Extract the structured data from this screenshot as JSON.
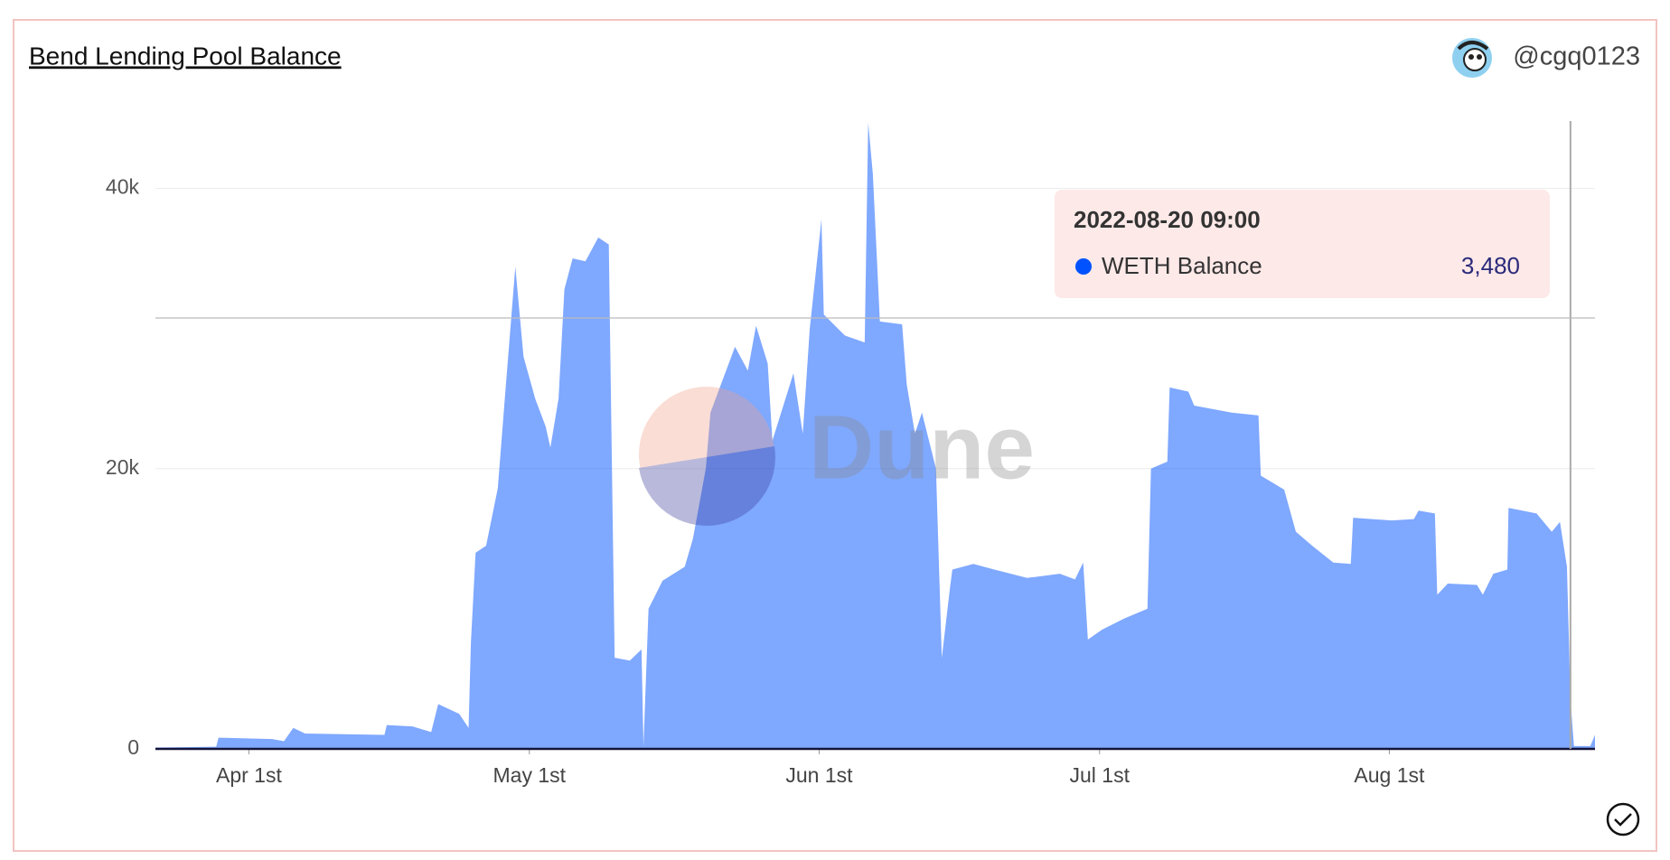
{
  "chart_data": {
    "type": "area",
    "title": "Bend Lending Pool Balance",
    "author": "@cgq0123",
    "watermark": "Dune",
    "xlim": [
      "2022-03-22 00:00",
      "2022-08-23 00:00"
    ],
    "xticks": [
      {
        "value": "2022-04-01 00:00",
        "label": "Apr 1st"
      },
      {
        "value": "2022-05-01 00:00",
        "label": "May 1st"
      },
      {
        "value": "2022-06-01 00:00",
        "label": "Jun 1st"
      },
      {
        "value": "2022-07-01 00:00",
        "label": "Jul 1st"
      },
      {
        "value": "2022-08-01 00:00",
        "label": "Aug 1st"
      }
    ],
    "ylim": [
      0,
      45000
    ],
    "yticks": [
      0,
      {
        "value": 20000,
        "label": "20k"
      },
      {
        "value": 40000,
        "label": "40k"
      }
    ],
    "grid": true,
    "x": [
      "2022-03-22 00:00",
      "2022-03-28 12:00",
      "2022-03-28 18:00",
      "2022-04-03 12:00",
      "2022-04-04 18:00",
      "2022-04-05 18:00",
      "2022-04-07 00:00",
      "2022-04-15 12:00",
      "2022-04-15 18:00",
      "2022-04-18 12:00",
      "2022-04-20 12:00",
      "2022-04-21 06:00",
      "2022-04-23 12:00",
      "2022-04-24 12:00",
      "2022-04-24 18:00",
      "2022-04-25 06:00",
      "2022-04-26 09:00",
      "2022-04-27 15:00",
      "2022-04-28 09:00",
      "2022-04-29 12:00",
      "2022-04-30 09:00",
      "2022-05-01 15:00",
      "2022-05-02 18:00",
      "2022-05-03 06:00",
      "2022-05-04 03:00",
      "2022-05-04 18:00",
      "2022-05-05 15:00",
      "2022-05-07 00:00",
      "2022-05-08 09:00",
      "2022-05-09 12:00",
      "2022-05-10 03:00",
      "2022-05-11 18:00",
      "2022-05-13 00:00",
      "2022-05-13 05:00",
      "2022-05-13 18:00",
      "2022-05-15 06:00",
      "2022-05-17 15:00",
      "2022-05-18 12:00",
      "2022-05-19 21:00",
      "2022-05-20 09:00",
      "2022-05-23 00:00",
      "2022-05-24 09:00",
      "2022-05-25 06:00",
      "2022-05-26 12:00",
      "2022-05-27 00:00",
      "2022-05-29 06:00",
      "2022-05-30 06:00",
      "2022-05-31 00:00",
      "2022-06-01 06:00",
      "2022-06-01 12:00",
      "2022-06-03 18:00",
      "2022-06-05 21:00",
      "2022-06-06 06:00",
      "2022-06-06 18:00",
      "2022-06-07 12:00",
      "2022-06-09 21:00",
      "2022-06-10 09:00",
      "2022-06-11 06:00",
      "2022-06-12 00:00",
      "2022-06-13 12:00",
      "2022-06-14 03:00",
      "2022-06-15 00:00",
      "2022-06-15 06:00",
      "2022-06-17 12:00",
      "2022-06-19 18:00",
      "2022-06-23 06:00",
      "2022-06-26 18:00",
      "2022-06-28 09:00",
      "2022-06-29 06:00",
      "2022-06-29 18:00",
      "2022-07-01 06:00",
      "2022-07-03 15:00",
      "2022-07-06 03:00",
      "2022-07-06 12:00",
      "2022-07-08 06:00",
      "2022-07-08 12:00",
      "2022-07-10 12:00",
      "2022-07-11 03:00",
      "2022-07-15 03:00",
      "2022-07-18 00:00",
      "2022-07-18 06:00",
      "2022-07-20 18:00",
      "2022-07-22 00:00",
      "2022-07-23 18:00",
      "2022-07-26 00:00",
      "2022-07-27 21:00",
      "2022-07-28 03:00",
      "2022-08-01 06:00",
      "2022-08-03 15:00",
      "2022-08-04 03:00",
      "2022-08-05 21:00",
      "2022-08-06 03:00",
      "2022-08-07 06:00",
      "2022-08-10 09:00",
      "2022-08-11 00:00",
      "2022-08-12 03:00",
      "2022-08-13 15:00",
      "2022-08-13 18:00",
      "2022-08-16 18:00",
      "2022-08-18 09:00",
      "2022-08-19 06:00",
      "2022-08-20 00:00",
      "2022-08-20 09:00",
      "2022-08-20 18:00",
      "2022-08-22 12:00",
      "2022-08-23 00:00"
    ],
    "series": [
      {
        "name": "WETH Balance",
        "color": "#0052ff",
        "values": [
          100,
          150,
          800,
          700,
          550,
          1500,
          1100,
          1000,
          1700,
          1600,
          1200,
          3200,
          2500,
          1500,
          7600,
          14000,
          14500,
          18600,
          25000,
          34400,
          28000,
          25000,
          23000,
          21500,
          25000,
          32800,
          35000,
          34800,
          36500,
          36000,
          6500,
          6300,
          7100,
          200,
          10000,
          12000,
          13000,
          15000,
          20000,
          24000,
          28700,
          27000,
          30200,
          27500,
          22000,
          26800,
          22500,
          30000,
          37800,
          31000,
          29500,
          29000,
          44700,
          41000,
          30500,
          30300,
          26000,
          22500,
          24000,
          20000,
          6500,
          11500,
          12800,
          13200,
          12800,
          12200,
          12500,
          12100,
          13300,
          7800,
          8500,
          9300,
          10000,
          20000,
          20500,
          25800,
          25500,
          24500,
          24000,
          23800,
          19500,
          18500,
          15500,
          14500,
          13300,
          13200,
          16500,
          16300,
          16400,
          17000,
          16800,
          11000,
          11800,
          11700,
          11000,
          12500,
          12800,
          17200,
          16800,
          15500,
          16200,
          13000,
          3480,
          200,
          200,
          1000
        ]
      }
    ],
    "tooltip": {
      "x": "2022-08-20 09:00",
      "value": 3480,
      "value_label": "3,480"
    }
  }
}
